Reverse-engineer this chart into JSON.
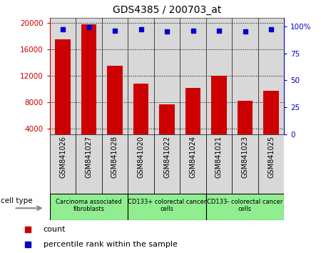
{
  "title": "GDS4385 / 200703_at",
  "samples": [
    "GSM841026",
    "GSM841027",
    "GSM841028",
    "GSM841020",
    "GSM841022",
    "GSM841024",
    "GSM841021",
    "GSM841023",
    "GSM841025"
  ],
  "counts": [
    17500,
    19800,
    13500,
    10800,
    7700,
    10200,
    12000,
    8200,
    9800
  ],
  "percentile_ranks": [
    97,
    99,
    96,
    97,
    95,
    96,
    96,
    95,
    97
  ],
  "bar_color": "#cc0000",
  "dot_color": "#0000cc",
  "left_axis_color": "#cc0000",
  "right_axis_color": "#0000cc",
  "ylim_left": [
    3200,
    20800
  ],
  "ylim_right": [
    0,
    108
  ],
  "yticks_left": [
    4000,
    8000,
    12000,
    16000,
    20000
  ],
  "yticks_right": [
    0,
    25,
    50,
    75,
    100
  ],
  "ytick_labels_right": [
    "0",
    "25",
    "50",
    "75",
    "100%"
  ],
  "bar_width": 0.6,
  "cell_type_label": "cell type",
  "legend_count_label": "count",
  "legend_percentile_label": "percentile rank within the sample",
  "group_defs": [
    [
      0,
      2,
      "Carcinoma associated\nfibroblasts"
    ],
    [
      3,
      5,
      "CD133+ colorectal cancer\ncells"
    ],
    [
      6,
      8,
      "CD133- colorectal cancer\ncells"
    ]
  ],
  "group_color": "#90EE90",
  "sample_bg_color": "#d8d8d8"
}
